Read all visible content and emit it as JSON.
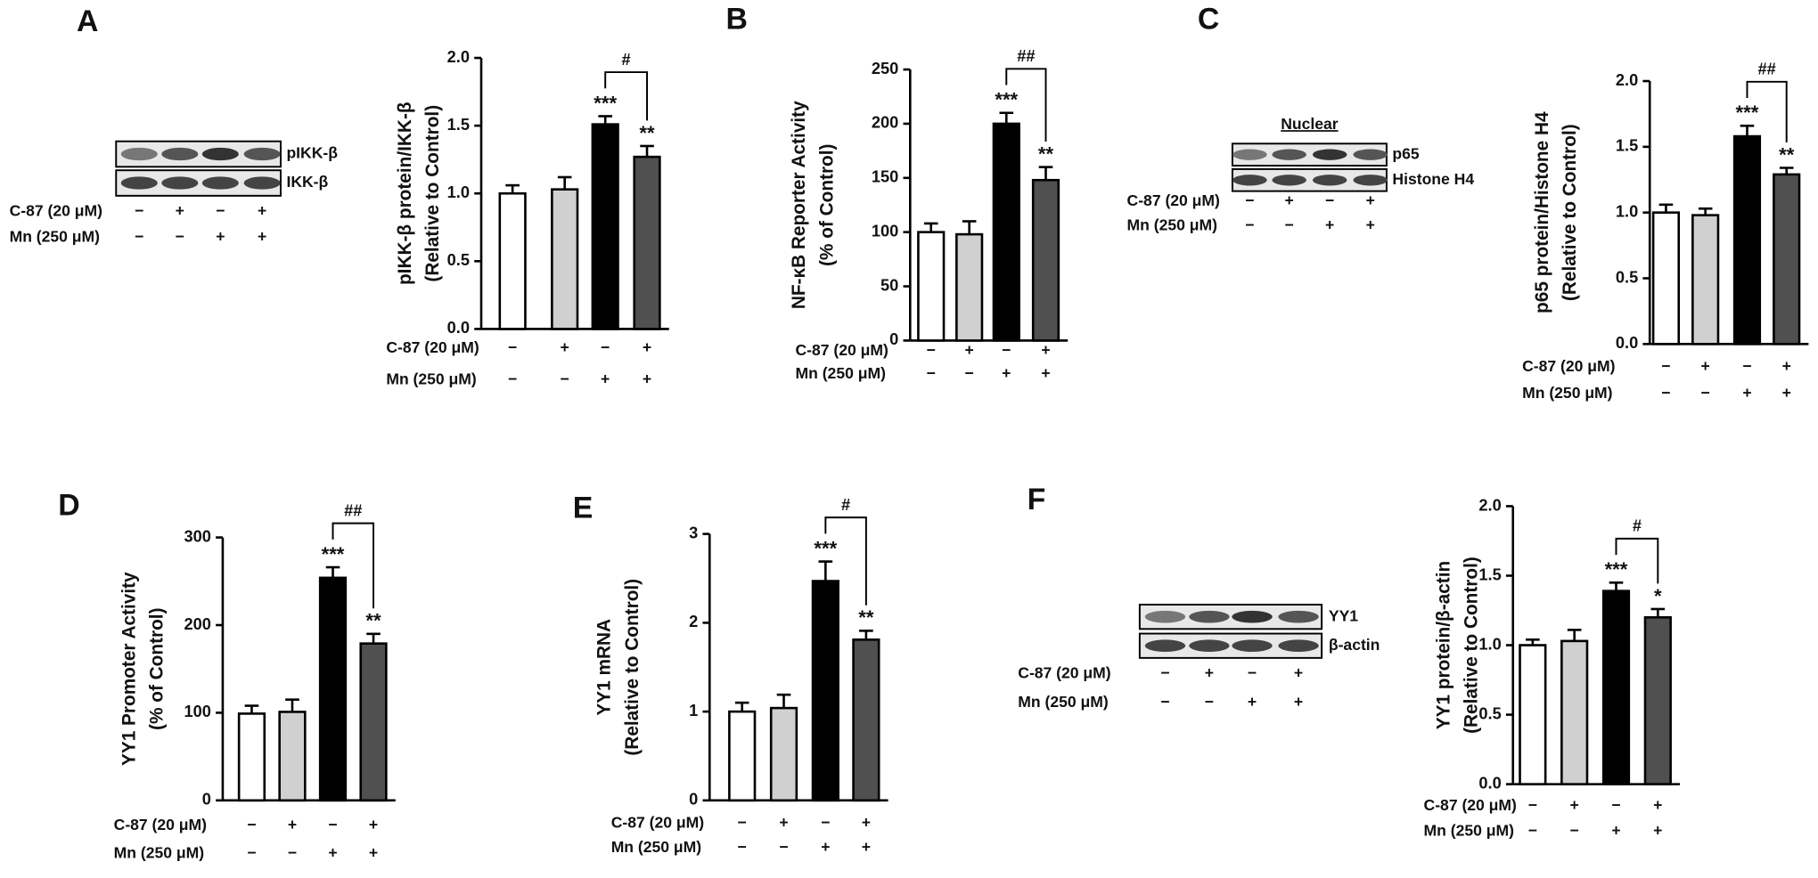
{
  "chart_data": [
    {
      "type": "bar",
      "panel": "A",
      "ylabel": [
        "pIKK-β protein/IKK-β",
        "(Relative to Control)"
      ],
      "values": [
        1.0,
        1.03,
        1.51,
        1.27
      ],
      "errors": [
        0.06,
        0.09,
        0.06,
        0.08
      ],
      "colors": [
        "#ffffff",
        "#d0d0d0",
        "#000000",
        "#505050"
      ],
      "ylim": [
        0,
        2.0
      ],
      "yticks": [
        {
          "value": 0,
          "label": "0.0"
        },
        {
          "value": 0.5,
          "label": "0.5"
        },
        {
          "value": 1.0,
          "label": "1.0"
        },
        {
          "value": 1.5,
          "label": "1.5"
        },
        {
          "value": 2.0,
          "label": "2.0"
        }
      ],
      "treatments": [
        {
          "name": "C-87 (20 μM)",
          "signs": [
            "−",
            "+",
            "−",
            "+"
          ]
        },
        {
          "name": "Mn (250 μM)",
          "signs": [
            "−",
            "−",
            "+",
            "+"
          ]
        }
      ],
      "annotations": [
        {
          "bar": 2,
          "text": "***"
        },
        {
          "bar": 3,
          "text": "**"
        }
      ],
      "bracket": {
        "from": 2,
        "to": 3,
        "text": "#"
      },
      "blot": {
        "labels": [
          "pIKK-β",
          "IKK-β"
        ],
        "treatments": [
          {
            "name": "C-87 (20 μM)",
            "signs": [
              "−",
              "+",
              "−",
              "+"
            ]
          },
          {
            "name": "Mn (250 μM)",
            "signs": [
              "−",
              "−",
              "+",
              "+"
            ]
          }
        ]
      }
    },
    {
      "type": "bar",
      "panel": "B",
      "ylabel": [
        "NF-κB Reporter Activity",
        "(% of Control)"
      ],
      "values": [
        100,
        98,
        200,
        148
      ],
      "errors": [
        8,
        12,
        10,
        12
      ],
      "colors": [
        "#ffffff",
        "#d0d0d0",
        "#000000",
        "#505050"
      ],
      "ylim": [
        0,
        250
      ],
      "yticks": [
        0,
        50,
        100,
        150,
        200,
        250
      ],
      "treatments": [
        {
          "name": "C-87 (20 μM)",
          "signs": [
            "−",
            "+",
            "−",
            "+"
          ]
        },
        {
          "name": "Mn (250 μM)",
          "signs": [
            "−",
            "−",
            "+",
            "+"
          ]
        }
      ],
      "annotations": [
        {
          "bar": 2,
          "text": "***"
        },
        {
          "bar": 3,
          "text": "**"
        }
      ],
      "bracket": {
        "from": 2,
        "to": 3,
        "text": "##"
      }
    },
    {
      "type": "bar",
      "panel": "C",
      "ylabel": [
        "p65 protein/Histone H4",
        "(Relative to Control)"
      ],
      "values": [
        1.0,
        0.98,
        1.58,
        1.29
      ],
      "errors": [
        0.06,
        0.05,
        0.08,
        0.05
      ],
      "colors": [
        "#ffffff",
        "#d0d0d0",
        "#000000",
        "#505050"
      ],
      "ylim": [
        0,
        2.0
      ],
      "yticks": [
        {
          "value": 0,
          "label": "0.0"
        },
        {
          "value": 0.5,
          "label": "0.5"
        },
        {
          "value": 1.0,
          "label": "1.0"
        },
        {
          "value": 1.5,
          "label": "1.5"
        },
        {
          "value": 2.0,
          "label": "2.0"
        }
      ],
      "treatments": [
        {
          "name": "C-87 (20 μM)",
          "signs": [
            "−",
            "+",
            "−",
            "+"
          ]
        },
        {
          "name": "Mn (250 μM)",
          "signs": [
            "−",
            "−",
            "+",
            "+"
          ]
        }
      ],
      "annotations": [
        {
          "bar": 2,
          "text": "***"
        },
        {
          "bar": 3,
          "text": "**"
        }
      ],
      "bracket": {
        "from": 2,
        "to": 3,
        "text": "##"
      },
      "blot": {
        "header": "Nuclear",
        "labels": [
          "p65",
          "Histone H4"
        ],
        "treatments": [
          {
            "name": "C-87 (20 μM)",
            "signs": [
              "−",
              "+",
              "−",
              "+"
            ]
          },
          {
            "name": "Mn (250 μM)",
            "signs": [
              "−",
              "−",
              "+",
              "+"
            ]
          }
        ]
      }
    },
    {
      "type": "bar",
      "panel": "D",
      "ylabel": [
        "YY1 Promoter Activity",
        "(% of Control)"
      ],
      "values": [
        99,
        101,
        254,
        179
      ],
      "errors": [
        9,
        14,
        12,
        11
      ],
      "colors": [
        "#ffffff",
        "#d0d0d0",
        "#000000",
        "#505050"
      ],
      "ylim": [
        0,
        300
      ],
      "yticks": [
        0,
        100,
        200,
        300
      ],
      "treatments": [
        {
          "name": "C-87 (20 μM)",
          "signs": [
            "−",
            "+",
            "−",
            "+"
          ]
        },
        {
          "name": "Mn (250 μM)",
          "signs": [
            "−",
            "−",
            "+",
            "+"
          ]
        }
      ],
      "annotations": [
        {
          "bar": 2,
          "text": "***"
        },
        {
          "bar": 3,
          "text": "**"
        }
      ],
      "bracket": {
        "from": 2,
        "to": 3,
        "text": "##"
      }
    },
    {
      "type": "bar",
      "panel": "E",
      "ylabel": [
        "YY1 mRNA",
        "(Relative to Control)"
      ],
      "values": [
        1.0,
        1.04,
        2.47,
        1.81
      ],
      "errors": [
        0.1,
        0.15,
        0.22,
        0.1
      ],
      "colors": [
        "#ffffff",
        "#d0d0d0",
        "#000000",
        "#505050"
      ],
      "ylim": [
        0,
        3
      ],
      "yticks": [
        0,
        1,
        2,
        3
      ],
      "treatments": [
        {
          "name": "C-87 (20 μM)",
          "signs": [
            "−",
            "+",
            "−",
            "+"
          ]
        },
        {
          "name": "Mn (250 μM)",
          "signs": [
            "−",
            "−",
            "+",
            "+"
          ]
        }
      ],
      "annotations": [
        {
          "bar": 2,
          "text": "***"
        },
        {
          "bar": 3,
          "text": "**"
        }
      ],
      "bracket": {
        "from": 2,
        "to": 3,
        "text": "#"
      }
    },
    {
      "type": "bar",
      "panel": "F",
      "ylabel": [
        "YY1 protein/β-actin",
        "(Relative to Control)"
      ],
      "values": [
        1.0,
        1.03,
        1.39,
        1.2
      ],
      "errors": [
        0.04,
        0.08,
        0.06,
        0.06
      ],
      "colors": [
        "#ffffff",
        "#d0d0d0",
        "#000000",
        "#505050"
      ],
      "ylim": [
        0,
        2.0
      ],
      "yticks": [
        {
          "value": 0,
          "label": "0.0"
        },
        {
          "value": 0.5,
          "label": "0.5"
        },
        {
          "value": 1.0,
          "label": "1.0"
        },
        {
          "value": 1.5,
          "label": "1.5"
        },
        {
          "value": 2.0,
          "label": "2.0"
        }
      ],
      "treatments": [
        {
          "name": "C-87 (20 μM)",
          "signs": [
            "−",
            "+",
            "−",
            "+"
          ]
        },
        {
          "name": "Mn (250 μM)",
          "signs": [
            "−",
            "−",
            "+",
            "+"
          ]
        }
      ],
      "annotations": [
        {
          "bar": 2,
          "text": "***"
        },
        {
          "bar": 3,
          "text": "*"
        }
      ],
      "bracket": {
        "from": 2,
        "to": 3,
        "text": "#"
      },
      "blot": {
        "labels": [
          "YY1",
          "β-actin"
        ],
        "treatments": [
          {
            "name": "C-87 (20 μM)",
            "signs": [
              "−",
              "+",
              "−",
              "+"
            ]
          },
          {
            "name": "Mn (250 μM)",
            "signs": [
              "−",
              "−",
              "+",
              "+"
            ]
          }
        ]
      }
    }
  ]
}
